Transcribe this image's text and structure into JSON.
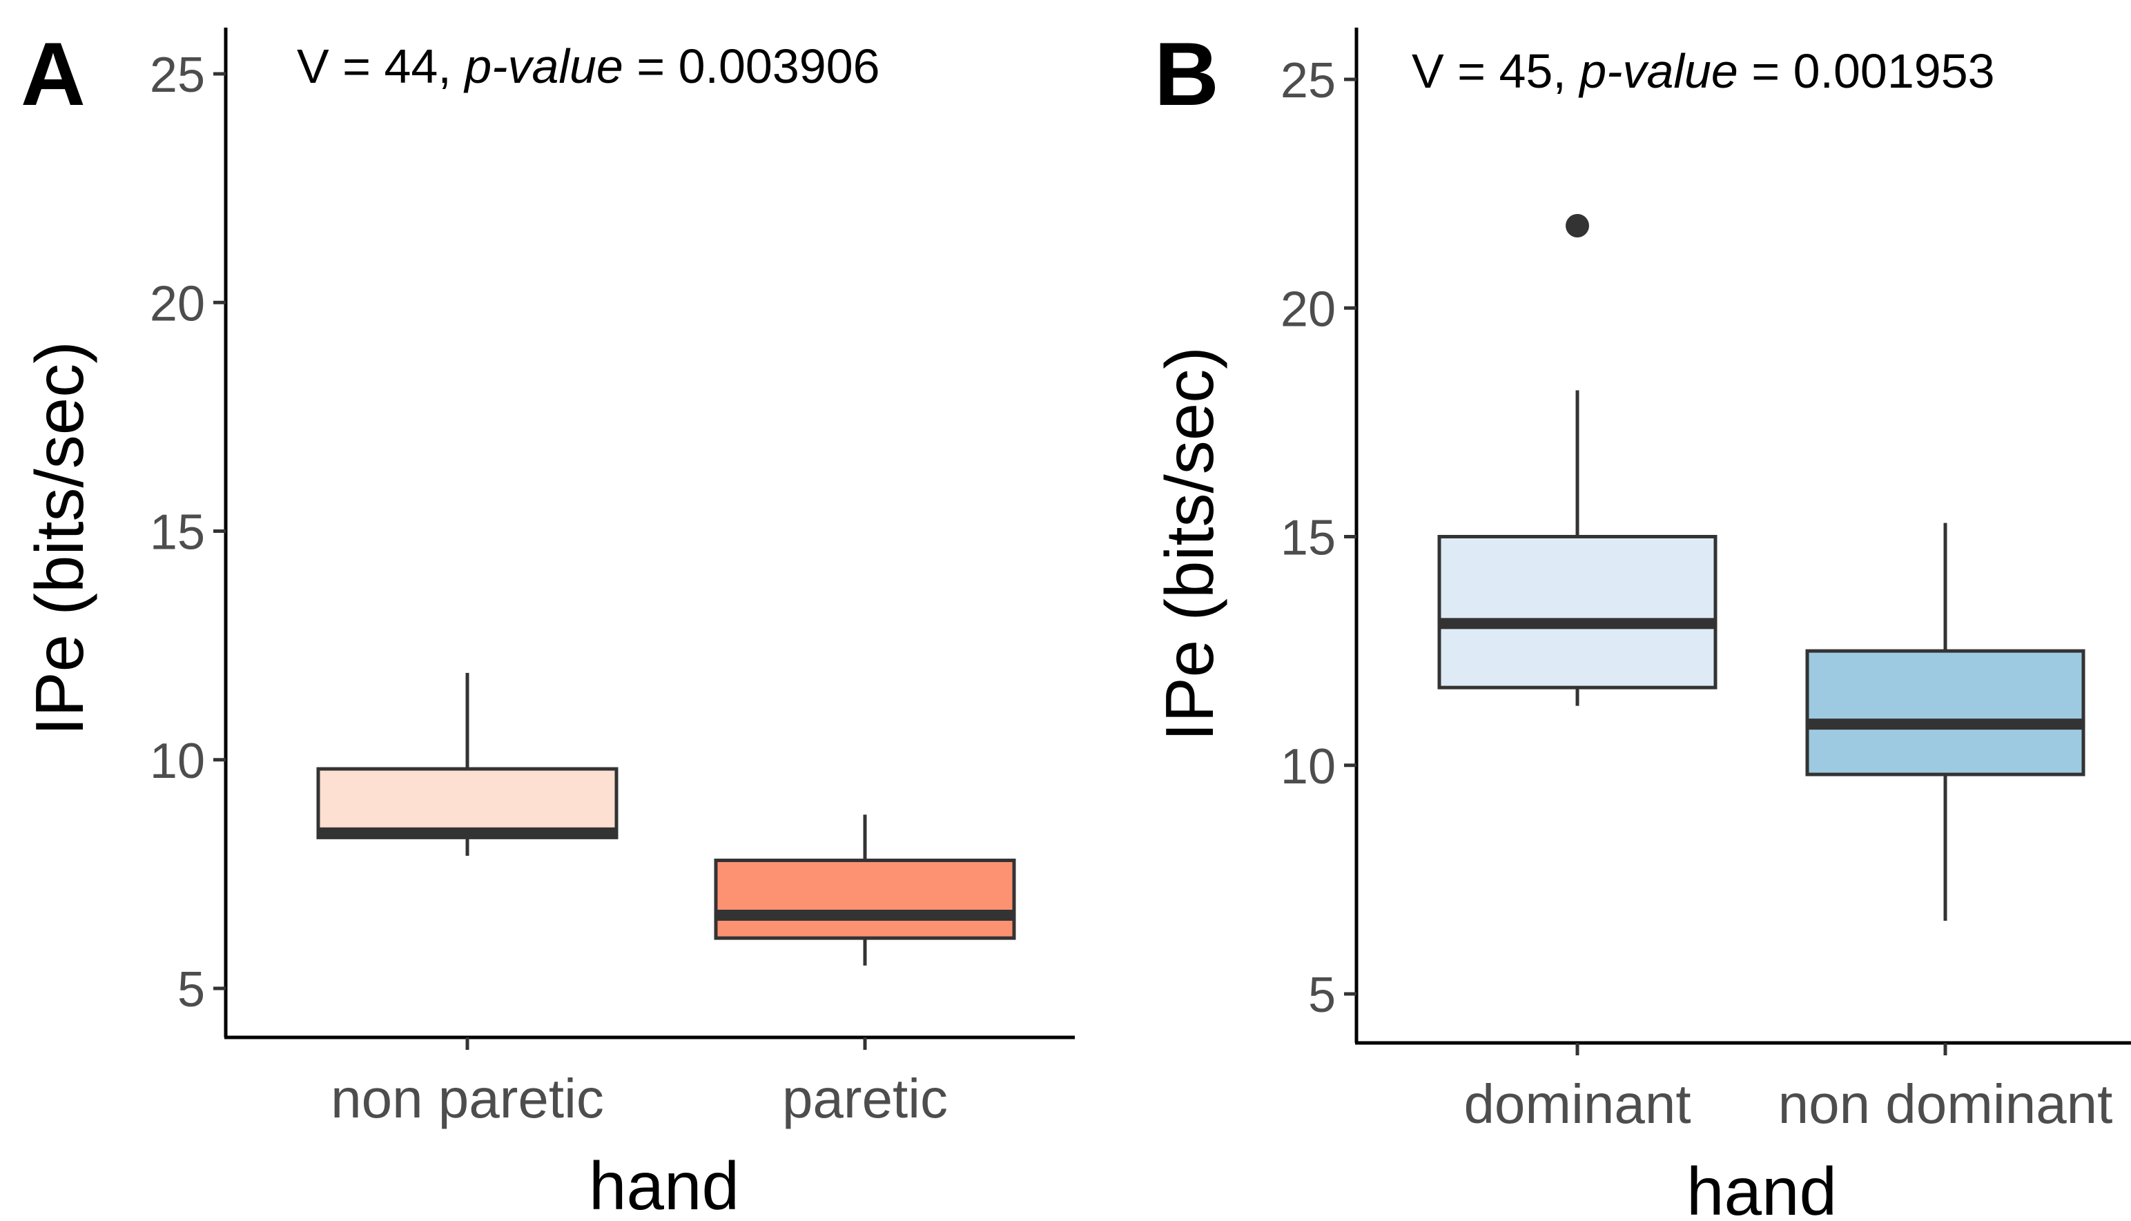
{
  "chart_data": [
    {
      "type": "box",
      "panel_label": "A",
      "annotation": {
        "prefix": "V = 44, ",
        "pname": "p-value",
        "suffix": " = 0.003906"
      },
      "xlabel": "hand",
      "ylabel": "IPe (bits/sec)",
      "yticks": [
        5,
        10,
        15,
        20,
        25
      ],
      "categories": [
        "non paretic",
        "paretic"
      ],
      "boxes": [
        {
          "category": "non paretic",
          "color": "#fde0d2",
          "whisker_low": 7.9,
          "q1": 8.3,
          "median": 8.4,
          "q3": 9.8,
          "whisker_high": 11.9,
          "outliers": []
        },
        {
          "category": "paretic",
          "color": "#fc9272",
          "whisker_low": 5.5,
          "q1": 6.1,
          "median": 6.6,
          "q3": 7.8,
          "whisker_high": 8.8,
          "outliers": []
        }
      ]
    },
    {
      "type": "box",
      "panel_label": "B",
      "annotation": {
        "prefix": "V = 45, ",
        "pname": "p-value",
        "suffix": " = 0.001953"
      },
      "xlabel": "hand",
      "ylabel": "IPe (bits/sec)",
      "yticks": [
        5,
        10,
        15,
        20,
        25
      ],
      "categories": [
        "dominant",
        "non dominant"
      ],
      "boxes": [
        {
          "category": "dominant",
          "color": "#deebf7",
          "whisker_low": 11.3,
          "q1": 11.7,
          "median": 13.1,
          "q3": 15.0,
          "whisker_high": 18.2,
          "outliers": [
            21.8
          ]
        },
        {
          "category": "non dominant",
          "color": "#9ecae1",
          "whisker_low": 6.6,
          "q1": 9.8,
          "median": 10.9,
          "q3": 12.5,
          "whisker_high": 15.3,
          "outliers": []
        }
      ]
    }
  ]
}
